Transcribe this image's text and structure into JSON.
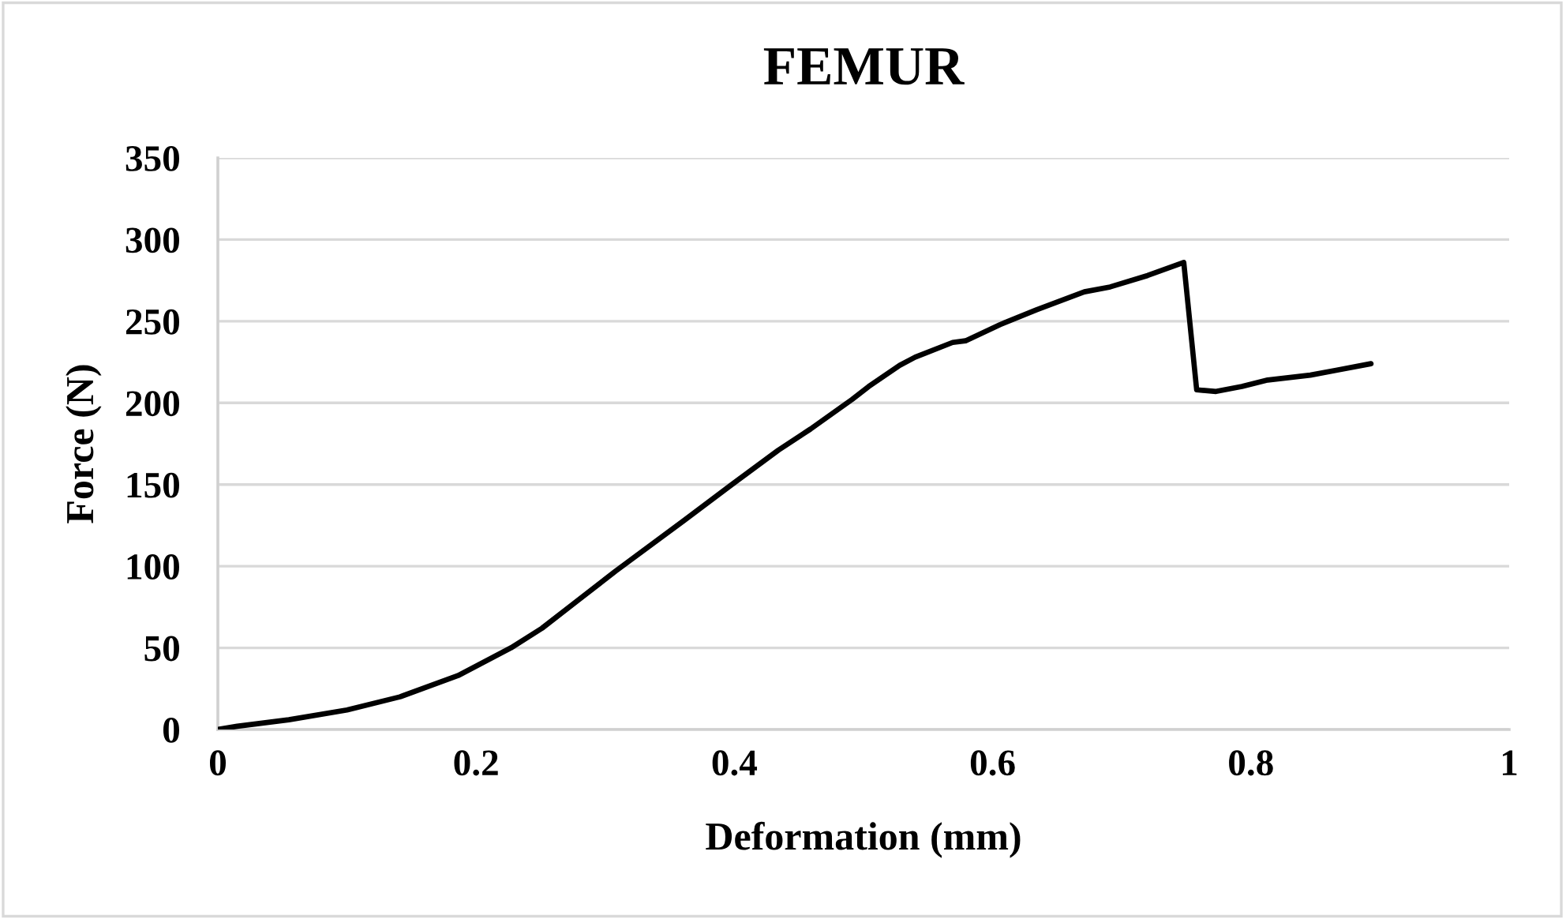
{
  "chart_data": {
    "type": "line",
    "title": "FEMUR",
    "xlabel": "Deformation (mm)",
    "ylabel": "Force (N)",
    "series": [
      {
        "color": "#000000",
        "x": [
          0,
          0.015,
          0.055,
          0.1,
          0.141,
          0.186,
          0.227,
          0.251,
          0.308,
          0.361,
          0.398,
          0.434,
          0.459,
          0.491,
          0.504,
          0.528,
          0.54,
          0.569,
          0.579,
          0.606,
          0.634,
          0.671,
          0.691,
          0.72,
          0.748,
          0.758,
          0.773,
          0.793,
          0.813,
          0.846,
          0.866,
          0.893
        ],
        "values": [
          0,
          2,
          6,
          12,
          20,
          33,
          50,
          62,
          97,
          128,
          150,
          171,
          184,
          202,
          210,
          223,
          228,
          237,
          238,
          248,
          257,
          268,
          271,
          278,
          286,
          208,
          207,
          210,
          214,
          217,
          220,
          224
        ]
      }
    ],
    "xlim": [
      0,
      1
    ],
    "xticks": [
      0,
      0.2,
      0.4,
      0.6,
      0.8,
      1
    ],
    "ylim": [
      0,
      350
    ],
    "yticks": [
      0,
      50,
      100,
      150,
      200,
      250,
      300,
      350
    ],
    "grid": "y",
    "marker": "none",
    "line_style": "solid"
  }
}
